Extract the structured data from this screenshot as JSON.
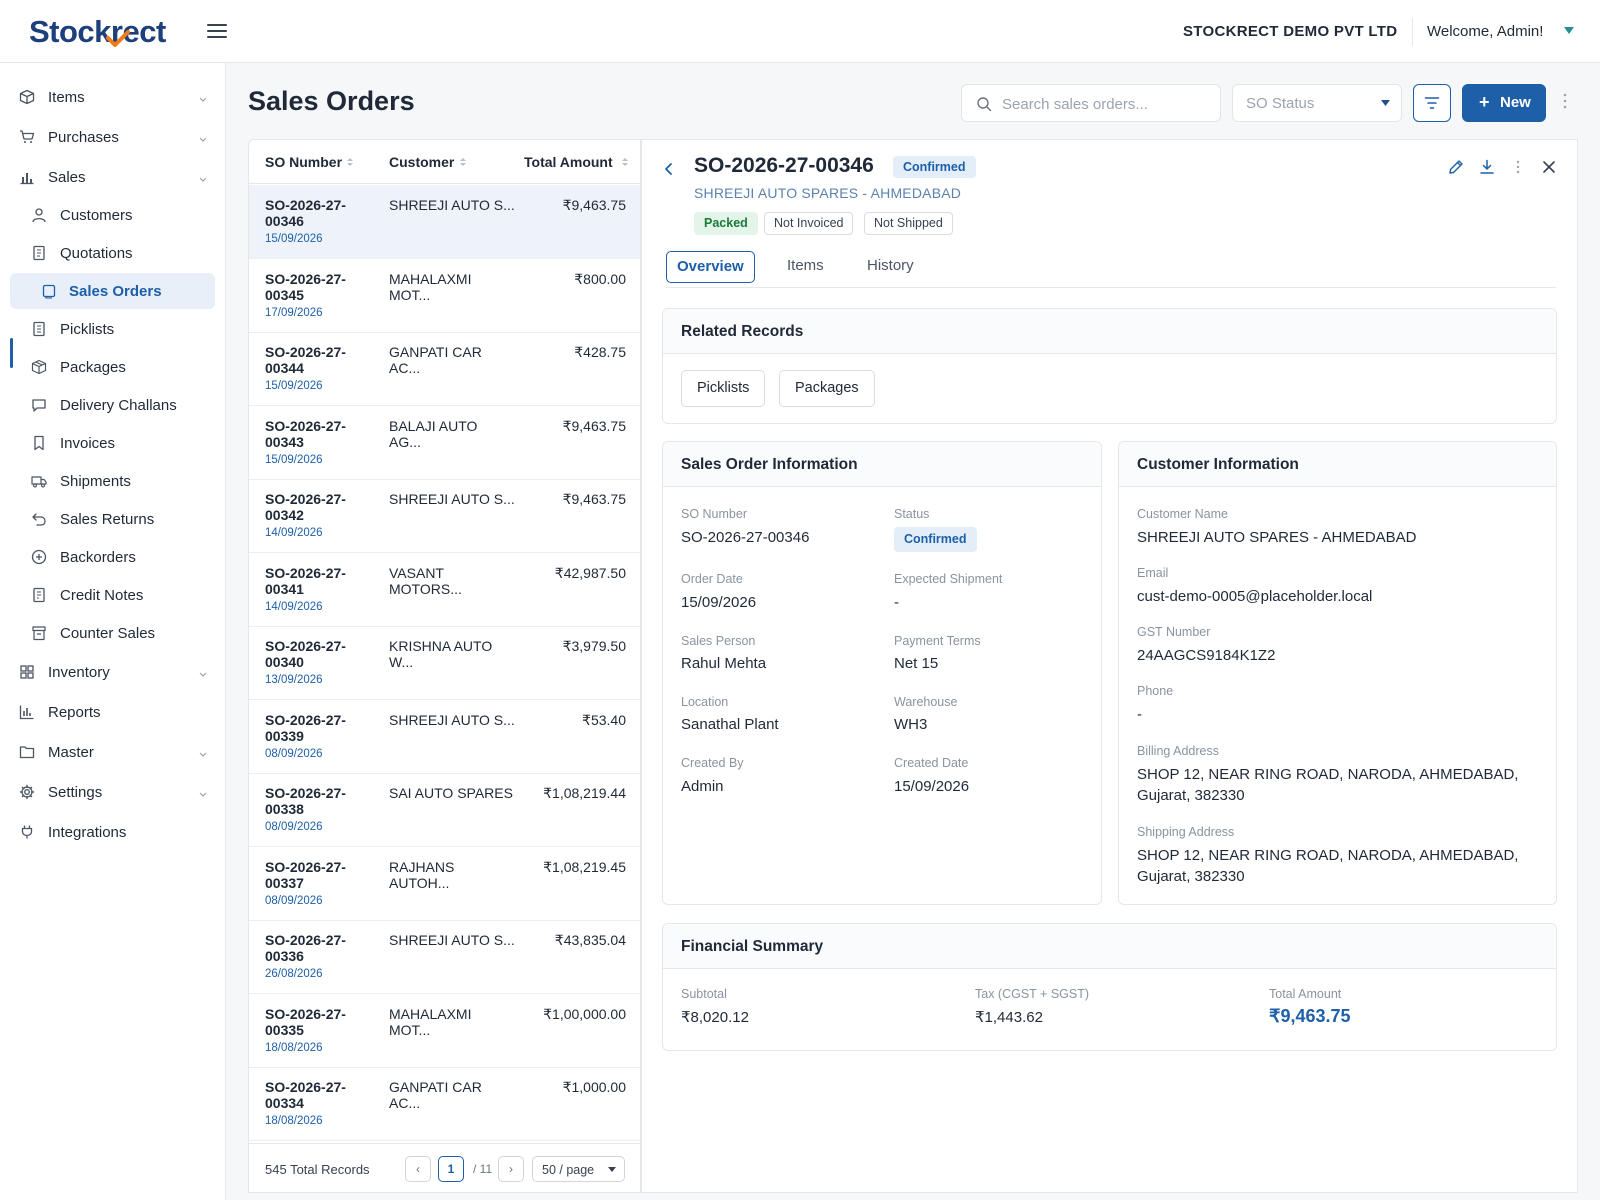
{
  "app": {
    "logo": "Stockrect",
    "company": "STOCKRECT DEMO PVT LTD",
    "welcome": "Welcome, Admin!"
  },
  "sidebar": {
    "items": [
      {
        "label": "Items",
        "icon": "box-icon"
      },
      {
        "label": "Purchases",
        "icon": "cart-icon"
      },
      {
        "label": "Sales",
        "icon": "bar-chart-icon"
      },
      {
        "label": "Customers",
        "icon": "user-icon"
      },
      {
        "label": "Quotations",
        "icon": "document-icon"
      },
      {
        "label": "Sales Orders",
        "icon": "clipboard-icon"
      },
      {
        "label": "Picklists",
        "icon": "list-doc-icon"
      },
      {
        "label": "Packages",
        "icon": "package-icon"
      },
      {
        "label": "Delivery Challans",
        "icon": "message-icon"
      },
      {
        "label": "Invoices",
        "icon": "bookmark-icon"
      },
      {
        "label": "Shipments",
        "icon": "truck-icon"
      },
      {
        "label": "Sales Returns",
        "icon": "return-icon"
      },
      {
        "label": "Backorders",
        "icon": "plus-circle-icon"
      },
      {
        "label": "Credit Notes",
        "icon": "receipt-icon"
      },
      {
        "label": "Counter Sales",
        "icon": "store-icon"
      },
      {
        "label": "Inventory",
        "icon": "grid-icon"
      },
      {
        "label": "Reports",
        "icon": "chart-icon"
      },
      {
        "label": "Master",
        "icon": "folder-icon"
      },
      {
        "label": "Settings",
        "icon": "gear-icon"
      },
      {
        "label": "Integrations",
        "icon": "plug-icon"
      }
    ]
  },
  "page": {
    "title": "Sales Orders"
  },
  "toolbar": {
    "search_placeholder": "Search sales orders...",
    "status_placeholder": "SO Status",
    "new_label": "New"
  },
  "list": {
    "headers": {
      "so": "SO Number",
      "customer": "Customer",
      "amount": "Total Amount"
    },
    "rows": [
      {
        "so1": "SO-2026-27-",
        "so2": "00346",
        "date": "15/09/2026",
        "c1": "SHREEJI AUTO S...",
        "c2": "",
        "amount": "₹9,463.75"
      },
      {
        "so1": "SO-2026-27-",
        "so2": "00345",
        "date": "17/09/2026",
        "c1": "MAHALAXMI",
        "c2": "MOT...",
        "amount": "₹800.00"
      },
      {
        "so1": "SO-2026-27-",
        "so2": "00344",
        "date": "15/09/2026",
        "c1": "GANPATI CAR",
        "c2": "AC...",
        "amount": "₹428.75"
      },
      {
        "so1": "SO-2026-27-",
        "so2": "00343",
        "date": "15/09/2026",
        "c1": "BALAJI AUTO",
        "c2": "AG...",
        "amount": "₹9,463.75"
      },
      {
        "so1": "SO-2026-27-",
        "so2": "00342",
        "date": "14/09/2026",
        "c1": "SHREEJI AUTO S...",
        "c2": "",
        "amount": "₹9,463.75"
      },
      {
        "so1": "SO-2026-27-",
        "so2": "00341",
        "date": "14/09/2026",
        "c1": "VASANT",
        "c2": "MOTORS...",
        "amount": "₹42,987.50"
      },
      {
        "so1": "SO-2026-27-",
        "so2": "00340",
        "date": "13/09/2026",
        "c1": "KRISHNA AUTO",
        "c2": "W...",
        "amount": "₹3,979.50"
      },
      {
        "so1": "SO-2026-27-",
        "so2": "00339",
        "date": "08/09/2026",
        "c1": "SHREEJI AUTO S...",
        "c2": "",
        "amount": "₹53.40"
      },
      {
        "so1": "SO-2026-27-",
        "so2": "00338",
        "date": "08/09/2026",
        "c1": "SAI AUTO SPARES",
        "c2": "",
        "amount": "₹1,08,219.44"
      },
      {
        "so1": "SO-2026-27-",
        "so2": "00337",
        "date": "08/09/2026",
        "c1": "RAJHANS",
        "c2": "AUTOH...",
        "amount": "₹1,08,219.45"
      },
      {
        "so1": "SO-2026-27-",
        "so2": "00336",
        "date": "26/08/2026",
        "c1": "SHREEJI AUTO S...",
        "c2": "",
        "amount": "₹43,835.04"
      },
      {
        "so1": "SO-2026-27-",
        "so2": "00335",
        "date": "18/08/2026",
        "c1": "MAHALAXMI",
        "c2": "MOT...",
        "amount": "₹1,00,000.00"
      },
      {
        "so1": "SO-2026-27-",
        "so2": "00334",
        "date": "18/08/2026",
        "c1": "GANPATI CAR",
        "c2": "AC...",
        "amount": "₹1,000.00"
      }
    ],
    "total_records": "545 Total Records",
    "page_prev": "‹",
    "page_current": "1",
    "page_of": "/ 11",
    "page_next": "›",
    "per_page": "50 / page"
  },
  "detail": {
    "so_number": "SO-2026-27-00346",
    "status": "Confirmed",
    "customer": "SHREEJI AUTO SPARES - AHMEDABAD",
    "chips": [
      "Packed",
      "Not Invoiced",
      "Not Shipped"
    ],
    "tabs": [
      "Overview",
      "Items",
      "History"
    ],
    "related": {
      "title": "Related Records",
      "buttons": [
        "Picklists",
        "Packages"
      ]
    },
    "so_info": {
      "title": "Sales Order Information",
      "so_label": "SO Number",
      "so_value": "SO-2026-27-00346",
      "status_label": "Status",
      "status_value": "Confirmed",
      "order_date_label": "Order Date",
      "order_date": "15/09/2026",
      "exp_ship_label": "Expected Shipment",
      "exp_ship": "-",
      "sales_person_label": "Sales Person",
      "sales_person": "Rahul Mehta",
      "payment_terms_label": "Payment Terms",
      "payment_terms": "Net 15",
      "location_label": "Location",
      "location": "Sanathal Plant",
      "warehouse_label": "Warehouse",
      "warehouse": "WH3",
      "created_by_label": "Created By",
      "created_by": "Admin",
      "created_date_label": "Created Date",
      "created_date": "15/09/2026"
    },
    "cust_info": {
      "title": "Customer Information",
      "name_label": "Customer Name",
      "name": "SHREEJI AUTO SPARES - AHMEDABAD",
      "email_label": "Email",
      "email": "cust-demo-0005@placeholder.local",
      "gst_label": "GST Number",
      "gst": "24AAGCS9184K1Z2",
      "phone_label": "Phone",
      "phone": "-",
      "billing_label": "Billing Address",
      "billing1": "SHOP 12, NEAR RING ROAD, NARODA, AHMEDABAD,",
      "billing2": "Gujarat, 382330",
      "shipping_label": "Shipping Address",
      "shipping1": "SHOP 12, NEAR RING ROAD, NARODA, AHMEDABAD,",
      "shipping2": "Gujarat, 382330"
    },
    "financial": {
      "title": "Financial Summary",
      "subtotal_label": "Subtotal",
      "subtotal": "₹8,020.12",
      "tax_label": "Tax (CGST + SGST)",
      "tax": "₹1,443.62",
      "total_label": "Total Amount",
      "total": "₹9,463.75"
    }
  },
  "colors": {
    "brand": "#1d3f7c",
    "accent": "#1d5fa8",
    "accent_orange": "#f07b1d",
    "green": "#1b7a3a"
  }
}
